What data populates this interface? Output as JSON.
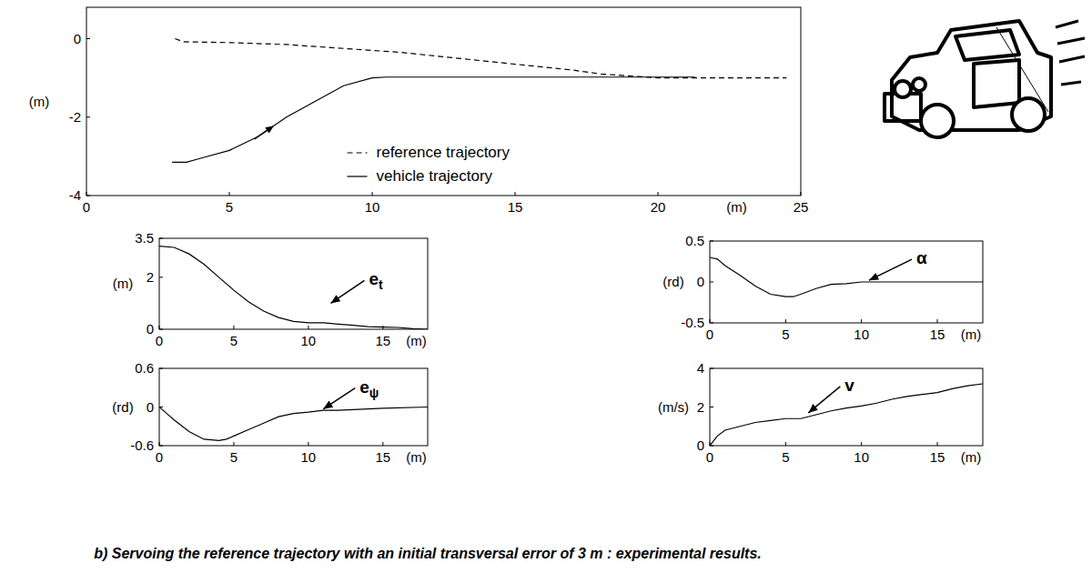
{
  "chart_data": [
    {
      "type": "line",
      "xlim": [
        0,
        25
      ],
      "xticks": [
        0,
        5,
        10,
        15,
        20,
        25
      ],
      "ylim": [
        -4,
        0.8
      ],
      "yticks": [
        -4,
        -2,
        0
      ],
      "xlabel": "(m)",
      "ylabel": "(m)",
      "legend": "lower center",
      "series": [
        {
          "name": "reference trajectory",
          "color": "#000000",
          "line_style": "dashed",
          "x": [
            3.1,
            3.4,
            5,
            7,
            9,
            11,
            13,
            15,
            17,
            18,
            20,
            24.5
          ],
          "values": [
            0,
            -0.08,
            -0.1,
            -0.15,
            -0.25,
            -0.35,
            -0.5,
            -0.65,
            -0.8,
            -0.9,
            -1,
            -1
          ]
        },
        {
          "name": "vehicle trajectory",
          "color": "#000000",
          "line_style": "solid",
          "x": [
            3,
            3.5,
            4,
            5,
            6,
            7,
            8,
            9,
            10,
            10.5,
            21.3
          ],
          "values": [
            -3.15,
            -3.15,
            -3.05,
            -2.85,
            -2.5,
            -2.0,
            -1.6,
            -1.2,
            -1.0,
            -0.98,
            -0.98
          ]
        }
      ],
      "annotations": [
        {
          "x": 6.3,
          "y": -2.35,
          "marker": "arrow"
        }
      ]
    },
    {
      "type": "line",
      "xlim": [
        0,
        18
      ],
      "xticks": [
        0,
        5,
        10,
        15
      ],
      "ylim": [
        0,
        3.5
      ],
      "yticks": [
        0,
        2,
        3.5
      ],
      "xlabel": "(m)",
      "ylabel": "(m)",
      "x": [
        0,
        1,
        2,
        3,
        4,
        5,
        6,
        7,
        8,
        9,
        10,
        11,
        12,
        13,
        14,
        15,
        16,
        17,
        18
      ],
      "series": [
        {
          "color": "#000000",
          "line_style": "solid",
          "values": [
            3.2,
            3.15,
            2.9,
            2.5,
            2.0,
            1.5,
            1.05,
            0.7,
            0.45,
            0.3,
            0.25,
            0.25,
            0.2,
            0.15,
            0.1,
            0.08,
            0.07,
            0.02,
            0
          ]
        }
      ],
      "annotations": [
        {
          "text": "e",
          "subscript": "t",
          "x": 11.5,
          "y": 1.0
        }
      ]
    },
    {
      "type": "line",
      "xlim": [
        0,
        18
      ],
      "xticks": [
        0,
        5,
        10,
        15
      ],
      "ylim": [
        -0.5,
        0.5
      ],
      "yticks": [
        -0.5,
        0,
        0.5
      ],
      "xlabel": "(m)",
      "ylabel": "(rd)",
      "x": [
        0,
        0.5,
        1,
        2,
        3,
        4,
        5,
        5.5,
        6,
        7,
        8,
        9,
        10,
        18
      ],
      "series": [
        {
          "color": "#000000",
          "line_style": "solid",
          "values": [
            0.3,
            0.28,
            0.2,
            0.08,
            -0.05,
            -0.15,
            -0.18,
            -0.18,
            -0.15,
            -0.08,
            -0.03,
            -0.02,
            0,
            0
          ]
        }
      ],
      "annotations": [
        {
          "text": "α",
          "x": 10.5,
          "y": 0.02
        }
      ]
    },
    {
      "type": "line",
      "xlim": [
        0,
        18
      ],
      "xticks": [
        0,
        5,
        10,
        15
      ],
      "ylim": [
        -0.6,
        0.6
      ],
      "yticks": [
        -0.6,
        0,
        0.6
      ],
      "xlabel": "(m)",
      "ylabel": "(rd)",
      "x": [
        0,
        0.5,
        1,
        2,
        3,
        4,
        4.5,
        5,
        6,
        7,
        8,
        9,
        10,
        11,
        12,
        14,
        15,
        18
      ],
      "series": [
        {
          "color": "#000000",
          "line_style": "solid",
          "values": [
            0,
            -0.1,
            -0.2,
            -0.38,
            -0.5,
            -0.52,
            -0.5,
            -0.45,
            -0.35,
            -0.25,
            -0.15,
            -0.1,
            -0.08,
            -0.05,
            -0.05,
            -0.03,
            -0.02,
            0
          ]
        }
      ],
      "annotations": [
        {
          "text": "e",
          "subscript": "ψ",
          "x": 11,
          "y": -0.03
        }
      ]
    },
    {
      "type": "line",
      "xlim": [
        0,
        18
      ],
      "xticks": [
        0,
        5,
        10,
        15
      ],
      "ylim": [
        0,
        4
      ],
      "yticks": [
        0,
        2,
        4
      ],
      "xlabel": "(m)",
      "ylabel": "(m/s)",
      "x": [
        0,
        0.5,
        1,
        2,
        3,
        4,
        5,
        6,
        7,
        8,
        9,
        10,
        11,
        12,
        13,
        14,
        15,
        16,
        17,
        18
      ],
      "series": [
        {
          "color": "#000000",
          "line_style": "solid",
          "values": [
            0,
            0.5,
            0.8,
            1.0,
            1.2,
            1.3,
            1.4,
            1.4,
            1.6,
            1.8,
            1.95,
            2.05,
            2.2,
            2.4,
            2.55,
            2.65,
            2.75,
            2.95,
            3.1,
            3.2
          ]
        }
      ],
      "annotations": [
        {
          "text": "v",
          "x": 6.5,
          "y": 1.7
        }
      ]
    }
  ],
  "caption": "b) Servoing the reference trajectory with an initial transversal error of 3 m : experimental results."
}
